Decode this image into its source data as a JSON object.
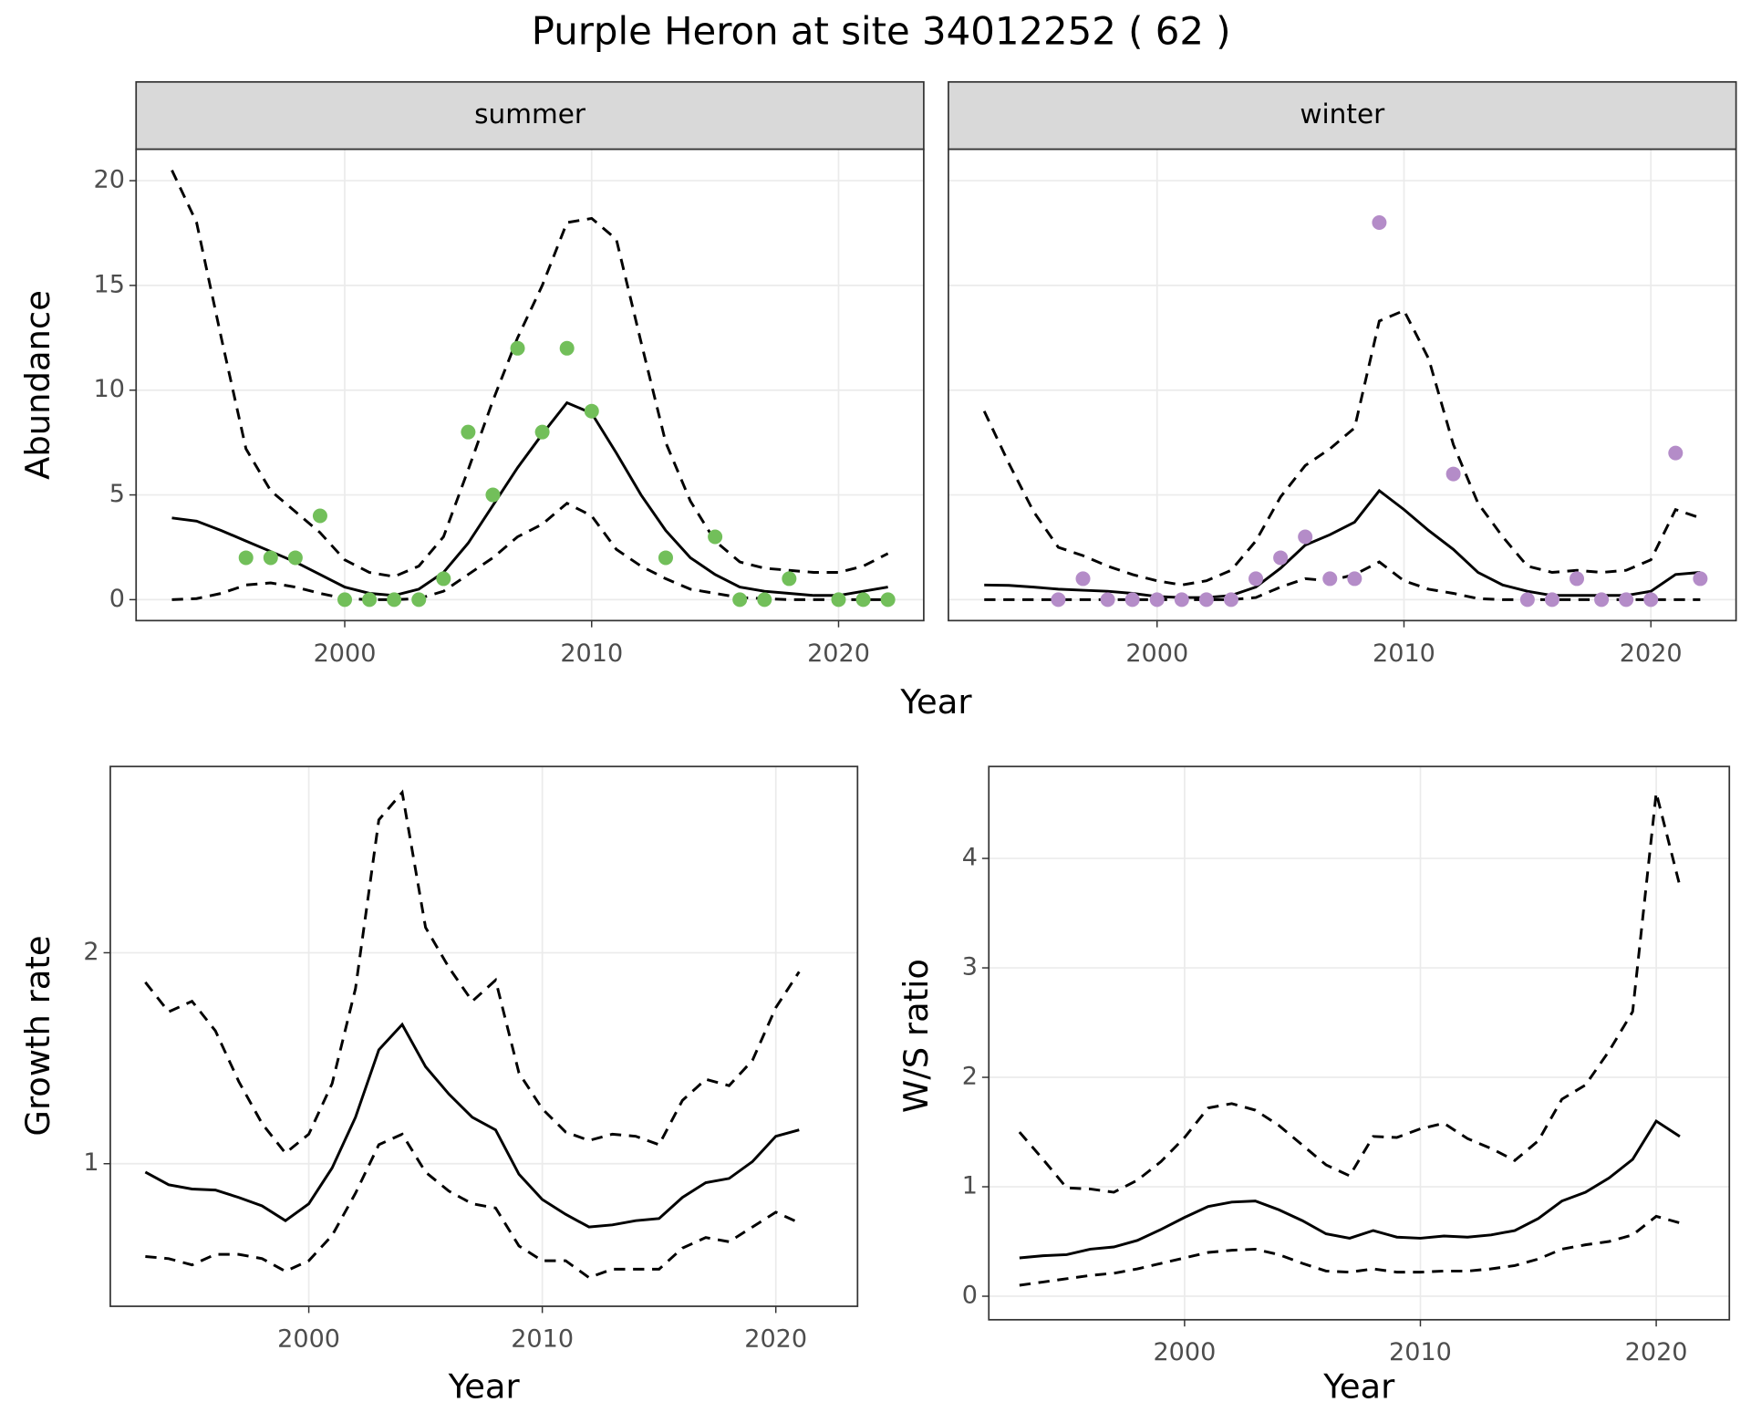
{
  "title": "Purple Heron at site 34012252 ( 62 )",
  "chart_data": [
    {
      "type": "facet-line",
      "y_label": "Abundance",
      "x_label": "Year",
      "xlim": [
        1991.55,
        2023.45
      ],
      "ylim": [
        -1,
        21.5
      ],
      "xticks": [
        2000,
        2010,
        2020
      ],
      "yticks": [
        0,
        5,
        10,
        15,
        20
      ],
      "grid": true,
      "panels": [
        {
          "label": "summer",
          "x": [
            1993,
            1994,
            1995,
            1996,
            1997,
            1998,
            1999,
            2000,
            2001,
            2002,
            2003,
            2004,
            2005,
            2006,
            2007,
            2008,
            2009,
            2010,
            2011,
            2012,
            2013,
            2014,
            2015,
            2016,
            2017,
            2018,
            2019,
            2020,
            2021,
            2022
          ],
          "series": [
            {
              "style": "solid",
              "color": "#000000",
              "values": [
                3.9,
                3.75,
                3.3,
                2.8,
                2.3,
                1.8,
                1.2,
                0.6,
                0.3,
                0.2,
                0.5,
                1.3,
                2.7,
                4.5,
                6.3,
                7.9,
                9.4,
                8.9,
                7.0,
                5.0,
                3.3,
                2.0,
                1.2,
                0.6,
                0.4,
                0.3,
                0.2,
                0.2,
                0.4,
                0.6
              ]
            },
            {
              "style": "dashed",
              "color": "#000000",
              "values": [
                20.5,
                18,
                12.5,
                7.2,
                5.2,
                4.2,
                3.2,
                1.9,
                1.3,
                1.1,
                1.6,
                3.0,
                6.2,
                9.5,
                12.5,
                15,
                18,
                18.2,
                17.2,
                12.3,
                7.5,
                4.7,
                2.8,
                1.8,
                1.5,
                1.4,
                1.3,
                1.3,
                1.6,
                2.2
              ]
            },
            {
              "style": "dashed",
              "color": "#000000",
              "values": [
                0,
                0.05,
                0.3,
                0.7,
                0.8,
                0.6,
                0.3,
                0.05,
                0,
                0,
                0.05,
                0.4,
                1.2,
                2.0,
                3.0,
                3.6,
                4.6,
                4.0,
                2.4,
                1.6,
                1.0,
                0.5,
                0.3,
                0.1,
                0.05,
                0,
                0,
                0,
                0,
                0
              ]
            }
          ],
          "points": {
            "color": "#72bf5a",
            "x": [
              1996,
              1997,
              1998,
              1999,
              2000,
              2001,
              2002,
              2003,
              2004,
              2005,
              2006,
              2007,
              2008,
              2009,
              2010,
              2013,
              2015,
              2016,
              2017,
              2018,
              2020,
              2021,
              2022
            ],
            "values": [
              2,
              2,
              2,
              4,
              0,
              0,
              0,
              0,
              1,
              8,
              5,
              12,
              8,
              12,
              9,
              2,
              3,
              0,
              0,
              1,
              0,
              0,
              0
            ]
          }
        },
        {
          "label": "winter",
          "x": [
            1993,
            1994,
            1995,
            1996,
            1997,
            1998,
            1999,
            2000,
            2001,
            2002,
            2003,
            2004,
            2005,
            2006,
            2007,
            2008,
            2009,
            2010,
            2011,
            2012,
            2013,
            2014,
            2015,
            2016,
            2017,
            2018,
            2019,
            2020,
            2021,
            2022
          ],
          "series": [
            {
              "style": "solid",
              "color": "#000000",
              "values": [
                0.7,
                0.68,
                0.6,
                0.5,
                0.45,
                0.4,
                0.3,
                0.15,
                0.1,
                0.1,
                0.2,
                0.6,
                1.5,
                2.6,
                3.1,
                3.7,
                5.2,
                4.3,
                3.3,
                2.4,
                1.3,
                0.7,
                0.4,
                0.2,
                0.2,
                0.2,
                0.2,
                0.4,
                1.2,
                1.3
              ]
            },
            {
              "style": "dashed",
              "color": "#000000",
              "values": [
                9,
                6.5,
                4.2,
                2.5,
                2.1,
                1.6,
                1.2,
                0.9,
                0.7,
                0.9,
                1.4,
                2.8,
                4.9,
                6.4,
                7.2,
                8.2,
                13.3,
                13.8,
                11.5,
                7.4,
                4.6,
                3.0,
                1.6,
                1.3,
                1.4,
                1.3,
                1.4,
                1.9,
                4.3,
                3.9
              ]
            },
            {
              "style": "dashed",
              "color": "#000000",
              "values": [
                0,
                0,
                0,
                0,
                0,
                0,
                0,
                0,
                0,
                0,
                0,
                0.1,
                0.6,
                1.0,
                0.9,
                1.2,
                1.8,
                0.9,
                0.5,
                0.3,
                0.05,
                0,
                0,
                0,
                0,
                0,
                0,
                0,
                0,
                0
              ]
            }
          ],
          "points": {
            "color": "#b48cc8",
            "x": [
              1996,
              1997,
              1998,
              1999,
              2000,
              2001,
              2002,
              2003,
              2004,
              2005,
              2006,
              2007,
              2008,
              2009,
              2012,
              2015,
              2016,
              2017,
              2018,
              2019,
              2020,
              2021,
              2022
            ],
            "values": [
              0,
              1,
              0,
              0,
              0,
              0,
              0,
              0,
              1,
              2,
              3,
              1,
              1,
              18,
              6,
              0,
              0,
              1,
              0,
              0,
              0,
              7,
              1
            ]
          }
        }
      ]
    },
    {
      "type": "line",
      "y_label": "Growth rate",
      "x_label": "Year",
      "xlim": [
        1991.5,
        2023.5
      ],
      "ylim": [
        0.324,
        2.883
      ],
      "xticks": [
        2000,
        2010,
        2020
      ],
      "yticks": [
        1,
        2
      ],
      "grid": true,
      "x": [
        1993,
        1994,
        1995,
        1996,
        1997,
        1998,
        1999,
        2000,
        2001,
        2002,
        2003,
        2004,
        2005,
        2006,
        2007,
        2008,
        2009,
        2010,
        2011,
        2012,
        2013,
        2014,
        2015,
        2016,
        2017,
        2018,
        2019,
        2020,
        2021
      ],
      "series": [
        {
          "style": "solid",
          "color": "#000000",
          "values": [
            0.96,
            0.9,
            0.88,
            0.875,
            0.84,
            0.8,
            0.73,
            0.81,
            0.98,
            1.22,
            1.54,
            1.66,
            1.46,
            1.33,
            1.22,
            1.16,
            0.95,
            0.83,
            0.76,
            0.7,
            0.71,
            0.73,
            0.74,
            0.84,
            0.91,
            0.93,
            1.01,
            1.13,
            1.16
          ]
        },
        {
          "style": "dashed",
          "color": "#000000",
          "values": [
            1.86,
            1.72,
            1.77,
            1.63,
            1.39,
            1.19,
            1.05,
            1.14,
            1.38,
            1.83,
            2.63,
            2.76,
            2.12,
            1.93,
            1.77,
            1.87,
            1.43,
            1.26,
            1.15,
            1.11,
            1.14,
            1.13,
            1.09,
            1.3,
            1.4,
            1.37,
            1.49,
            1.74,
            1.91
          ]
        },
        {
          "style": "dashed",
          "color": "#000000",
          "values": [
            0.56,
            0.55,
            0.52,
            0.57,
            0.57,
            0.55,
            0.49,
            0.54,
            0.66,
            0.86,
            1.09,
            1.14,
            0.96,
            0.87,
            0.81,
            0.79,
            0.61,
            0.54,
            0.54,
            0.46,
            0.5,
            0.5,
            0.5,
            0.6,
            0.65,
            0.63,
            0.7,
            0.77,
            0.72
          ]
        }
      ]
    },
    {
      "type": "line",
      "y_label": "W/S ratio",
      "x_label": "Year",
      "xlim": [
        1991.7,
        2023.1
      ],
      "ylim": [
        -0.215,
        4.84
      ],
      "xticks": [
        2000,
        2010,
        2020
      ],
      "yticks": [
        0,
        1,
        2,
        3,
        4
      ],
      "grid": true,
      "x": [
        1993,
        1994,
        1995,
        1996,
        1997,
        1998,
        1999,
        2000,
        2001,
        2002,
        2003,
        2004,
        2005,
        2006,
        2007,
        2008,
        2009,
        2010,
        2011,
        2012,
        2013,
        2014,
        2015,
        2016,
        2017,
        2018,
        2019,
        2020,
        2021
      ],
      "series": [
        {
          "style": "solid",
          "color": "#000000",
          "values": [
            0.35,
            0.37,
            0.38,
            0.43,
            0.45,
            0.51,
            0.61,
            0.72,
            0.82,
            0.86,
            0.87,
            0.79,
            0.69,
            0.57,
            0.53,
            0.6,
            0.54,
            0.53,
            0.55,
            0.54,
            0.56,
            0.6,
            0.71,
            0.87,
            0.95,
            1.08,
            1.25,
            1.6,
            1.46
          ]
        },
        {
          "style": "dashed",
          "color": "#000000",
          "values": [
            1.5,
            1.25,
            0.99,
            0.98,
            0.95,
            1.06,
            1.23,
            1.45,
            1.72,
            1.76,
            1.7,
            1.56,
            1.38,
            1.2,
            1.1,
            1.46,
            1.45,
            1.53,
            1.58,
            1.44,
            1.35,
            1.24,
            1.42,
            1.8,
            1.93,
            2.24,
            2.6,
            4.6,
            3.75
          ]
        },
        {
          "style": "dashed",
          "color": "#000000",
          "values": [
            0.1,
            0.13,
            0.16,
            0.19,
            0.21,
            0.25,
            0.3,
            0.35,
            0.4,
            0.42,
            0.43,
            0.38,
            0.3,
            0.23,
            0.22,
            0.25,
            0.22,
            0.22,
            0.23,
            0.23,
            0.25,
            0.28,
            0.34,
            0.43,
            0.47,
            0.5,
            0.56,
            0.73,
            0.67
          ]
        }
      ]
    }
  ]
}
